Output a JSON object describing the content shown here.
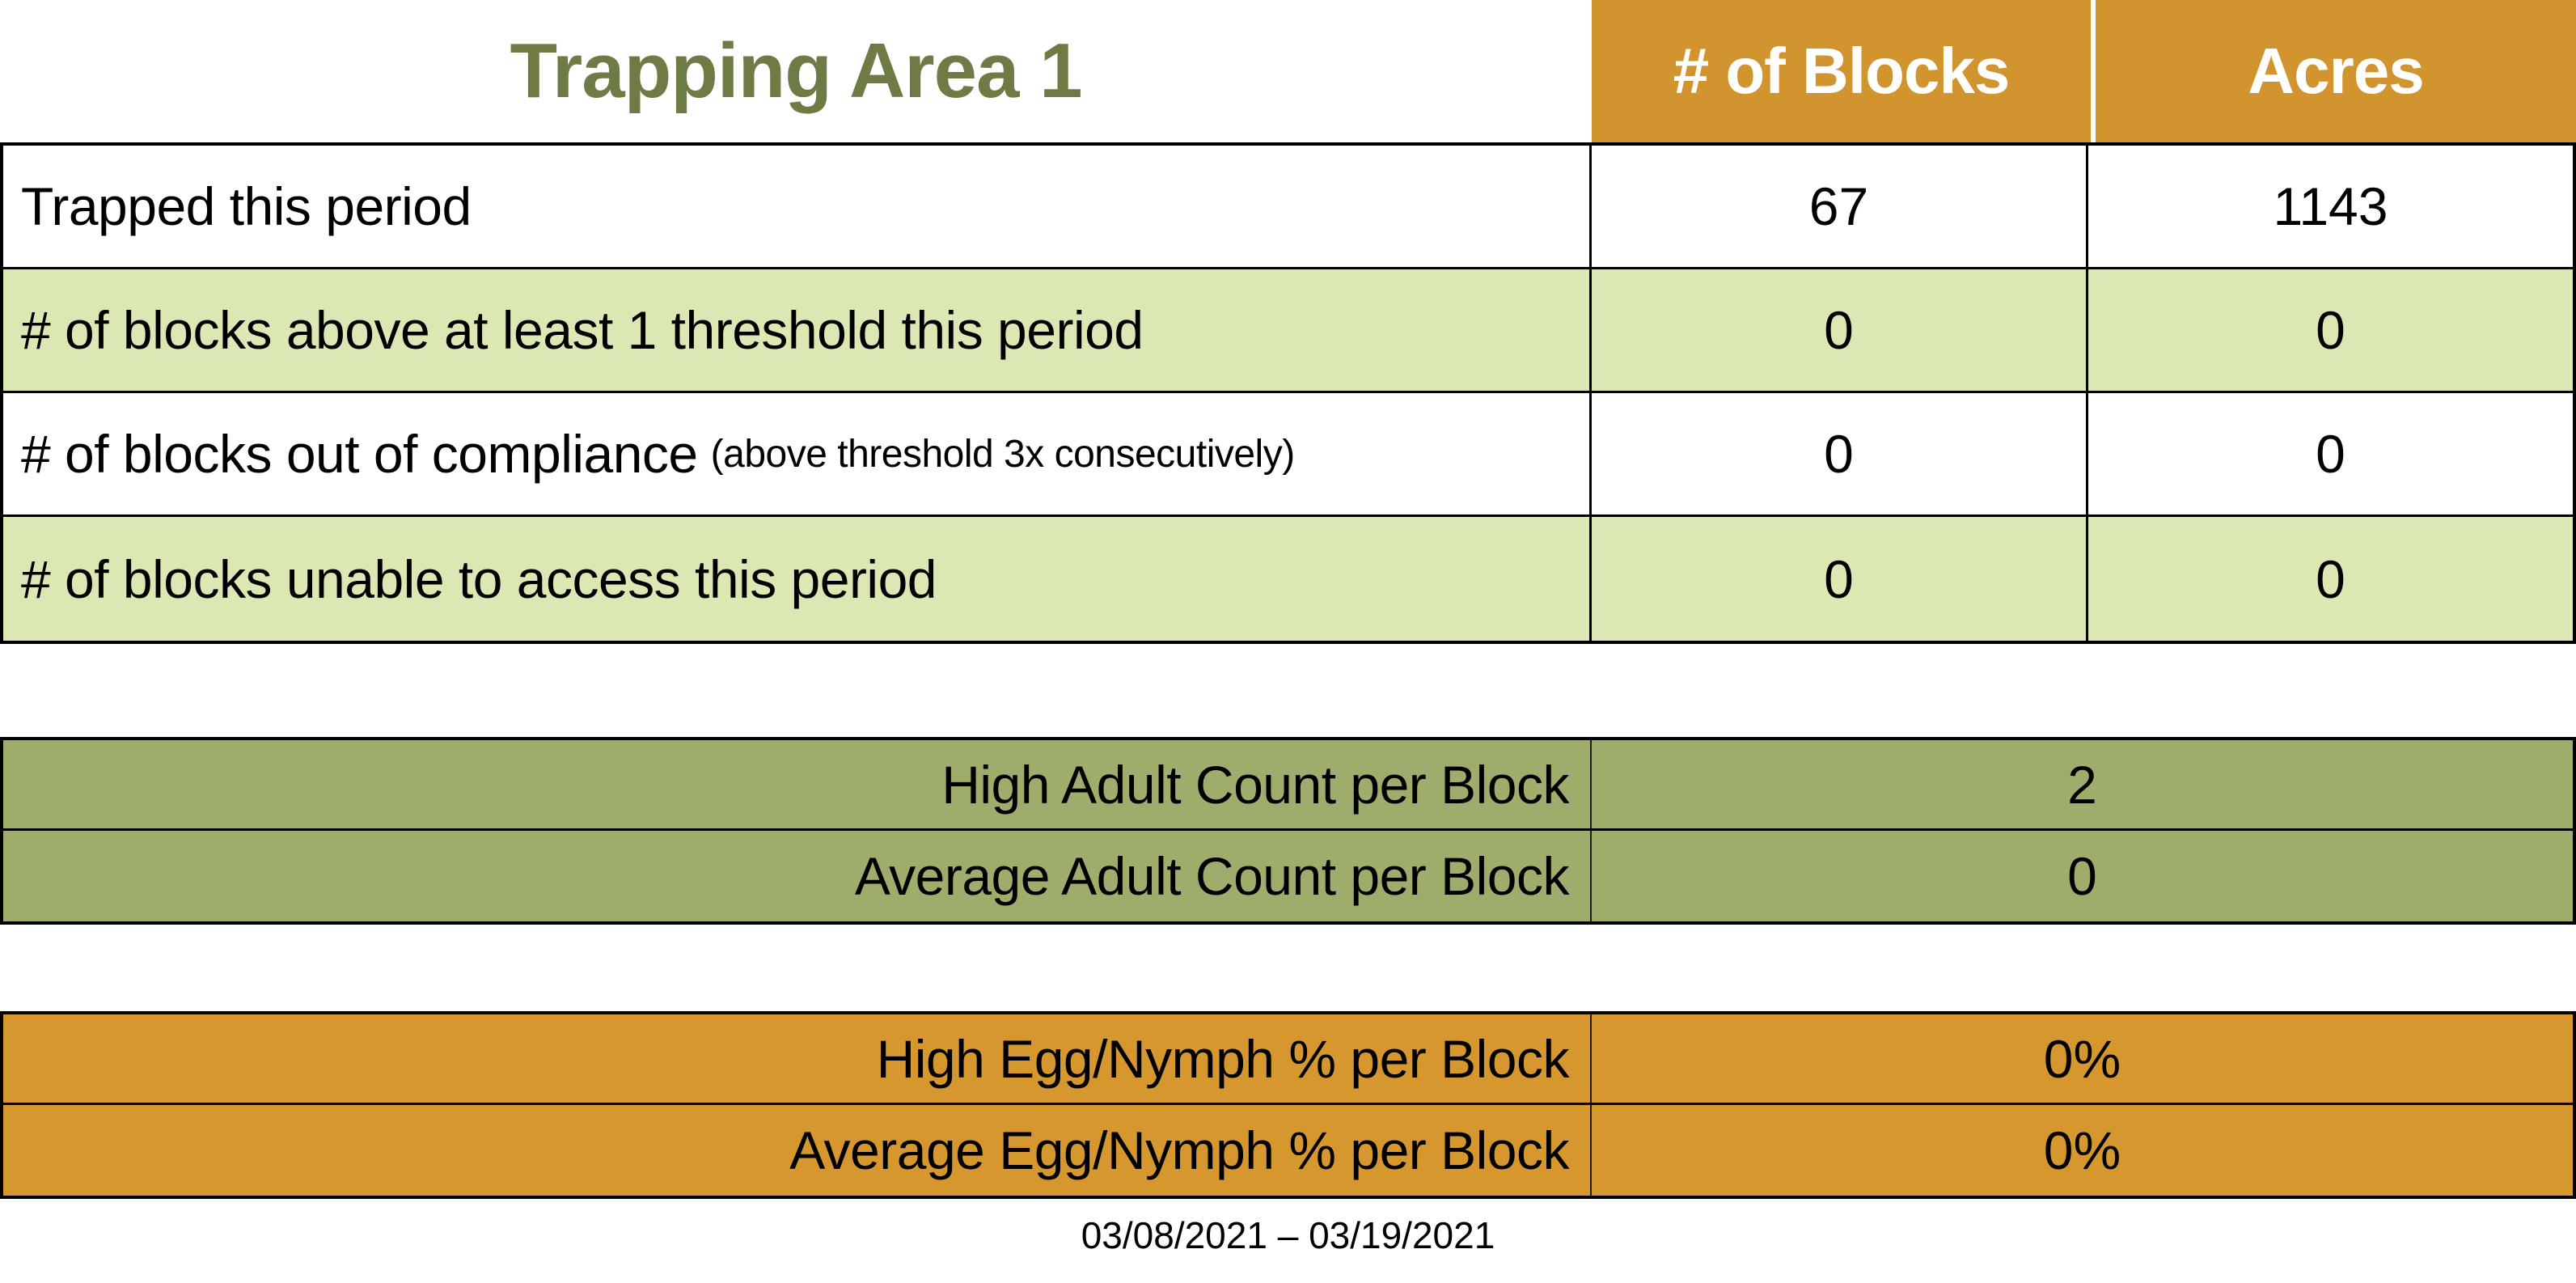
{
  "title": "Trapping Area 1",
  "colors": {
    "title-olive": "#6E7B45",
    "header-orange": "#D2942F",
    "row-green": "#DCE8B4",
    "adult-sage": "#9FAD6C",
    "egg-orange": "#D6982E",
    "border-black": "#000000"
  },
  "main_table": {
    "columns": [
      "# of Blocks",
      "Acres"
    ],
    "rows": [
      {
        "label": "Trapped this period",
        "note": "",
        "blocks": "67",
        "acres": "1143"
      },
      {
        "label": "# of blocks above at least 1 threshold this period",
        "note": "",
        "blocks": "0",
        "acres": "0"
      },
      {
        "label": "# of blocks out of compliance",
        "note": "(above threshold 3x consecutively)",
        "blocks": "0",
        "acres": "0"
      },
      {
        "label": "# of blocks unable to access this period",
        "note": "",
        "blocks": "0",
        "acres": "0"
      }
    ]
  },
  "adult_section": {
    "rows": [
      {
        "label": "High Adult Count per Block",
        "value": "2"
      },
      {
        "label": "Average Adult Count per Block",
        "value": "0"
      }
    ]
  },
  "egg_section": {
    "rows": [
      {
        "label": "High Egg/Nymph % per Block",
        "value": "0%"
      },
      {
        "label": "Average Egg/Nymph % per Block",
        "value": "0%"
      }
    ]
  },
  "footer": {
    "date_range": "03/08/2021 – 03/19/2021"
  }
}
